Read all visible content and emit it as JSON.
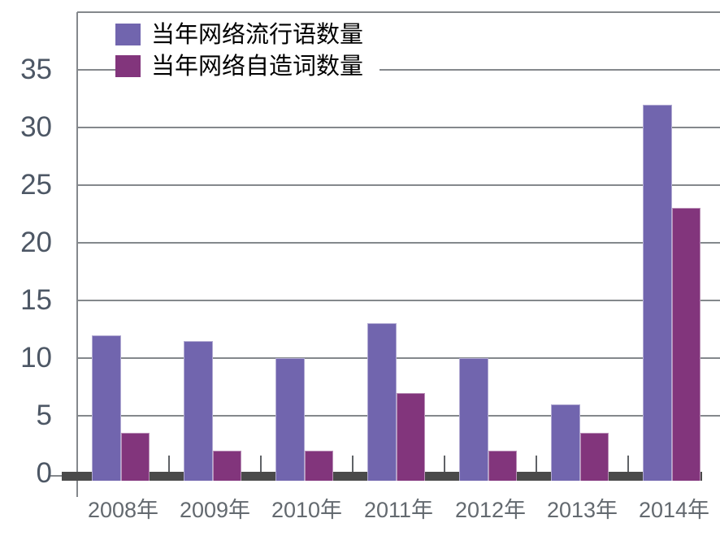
{
  "chart_data": {
    "type": "bar",
    "categories": [
      "2008年",
      "2009年",
      "2010年",
      "2011年",
      "2012年",
      "2013年",
      "2014年"
    ],
    "series": [
      {
        "name": "当年网络流行语数量",
        "color": "#7165AE",
        "values": [
          12,
          11.5,
          10,
          13,
          10,
          6,
          32
        ]
      },
      {
        "name": "当年网络自造词数量",
        "color": "#82357C",
        "values": [
          3.5,
          2,
          2,
          7,
          2,
          3.5,
          23
        ]
      }
    ],
    "y_axis": {
      "min": 0,
      "max": 40,
      "tick_step": 5,
      "tick_labels": [
        "0",
        "5",
        "10",
        "15",
        "20",
        "25",
        "30",
        "35"
      ]
    },
    "xlabel": "",
    "ylabel": "",
    "title": "",
    "grid": true,
    "legend_position": "top-left",
    "colors": {
      "gridline": "#84888c",
      "axis_baseline": "#4a4a4a",
      "y_label_text": "#4d5765",
      "x_label_text": "#63696f",
      "legend_text": "#000000",
      "background": "#ffffff"
    }
  }
}
